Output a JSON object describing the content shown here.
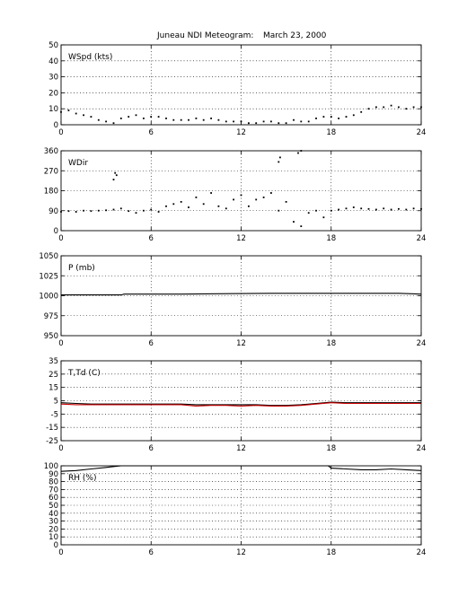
{
  "chart_data": [
    {
      "type": "scatter",
      "panel_label": "WSpd (kts)",
      "ylim": [
        0,
        50
      ],
      "yticks": [
        0,
        10,
        20,
        30,
        40,
        50
      ],
      "xlim": [
        0,
        24
      ],
      "xticks": [
        0,
        6,
        12,
        18,
        24
      ],
      "grid": true,
      "series": [
        {
          "color": "#000000",
          "x": [
            0,
            0.5,
            1,
            1.5,
            2,
            2.5,
            3,
            3.5,
            4,
            4.5,
            5,
            5.5,
            6,
            6.5,
            7,
            7.5,
            8,
            8.5,
            9,
            9.5,
            10,
            10.5,
            11,
            11.5,
            12,
            12.5,
            13,
            13.5,
            14,
            14.5,
            15,
            15.5,
            16,
            16.5,
            17,
            17.5,
            18,
            18.5,
            19,
            19.5,
            20,
            20.5,
            21,
            21.5,
            22,
            22.5,
            23,
            23.5,
            24
          ],
          "y": [
            8,
            9,
            7,
            6,
            5,
            3,
            2,
            1,
            4,
            5,
            6,
            4,
            5,
            5,
            4,
            3,
            3,
            3,
            4,
            3,
            4,
            3,
            2,
            2,
            2,
            1,
            1,
            2,
            2,
            1,
            1,
            3,
            2,
            2,
            4,
            5,
            5,
            4,
            5,
            6,
            8,
            10,
            11,
            11,
            12,
            11,
            10,
            11,
            11
          ]
        }
      ]
    },
    {
      "type": "scatter",
      "panel_label": "WDir",
      "ylim": [
        0,
        360
      ],
      "yticks": [
        0,
        90,
        180,
        270,
        360
      ],
      "xlim": [
        0,
        24
      ],
      "xticks": [
        0,
        6,
        12,
        18,
        24
      ],
      "grid": true,
      "series": [
        {
          "color": "#000000",
          "x": [
            0,
            0.5,
            1,
            1.5,
            2,
            2.5,
            3,
            3.5,
            4,
            4.5,
            5,
            5.5,
            6,
            6.5,
            7,
            7.5,
            8,
            8.5,
            9,
            9.5,
            10,
            10.5,
            11,
            11.5,
            12,
            12.5,
            13,
            13.5,
            14,
            14.5,
            15,
            15.5,
            16,
            16.5,
            17,
            17.5,
            18,
            18.5,
            19,
            19.5,
            20,
            20.5,
            21,
            21.5,
            22,
            22.5,
            23,
            23.5,
            24
          ],
          "y": [
            85,
            88,
            85,
            90,
            88,
            90,
            92,
            95,
            100,
            88,
            80,
            90,
            95,
            85,
            110,
            120,
            130,
            105,
            150,
            120,
            170,
            110,
            100,
            140,
            160,
            110,
            140,
            150,
            170,
            90,
            130,
            40,
            20,
            80,
            90,
            60,
            90,
            95,
            100,
            105,
            100,
            98,
            95,
            100,
            95,
            98,
            95,
            100,
            98
          ]
        },
        {
          "color": "#000000",
          "x": [
            3.5,
            3.6,
            3.7,
            14.5,
            14.6,
            15.8,
            16
          ],
          "y": [
            230,
            260,
            250,
            310,
            330,
            350,
            360
          ]
        }
      ]
    },
    {
      "type": "line",
      "panel_label": "P (mb)",
      "ylim": [
        950,
        1050
      ],
      "yticks": [
        950,
        975,
        1000,
        1025,
        1050
      ],
      "xlim": [
        0,
        24
      ],
      "xticks": [
        0,
        6,
        12,
        18,
        24
      ],
      "grid": true,
      "series": [
        {
          "color": "#000000",
          "x": [
            0,
            4,
            4.2,
            8,
            14,
            22.5,
            24
          ],
          "y": [
            1001,
            1001,
            1002,
            1002,
            1003,
            1003,
            1002
          ]
        }
      ]
    },
    {
      "type": "line",
      "panel_label": "T,Td (C)",
      "ylim": [
        -25,
        35
      ],
      "yticks": [
        -25,
        -15,
        -5,
        5,
        15,
        25,
        35
      ],
      "xlim": [
        0,
        24
      ],
      "xticks": [
        0,
        6,
        12,
        18,
        24
      ],
      "grid": true,
      "series": [
        {
          "color": "#000000",
          "x": [
            0,
            1,
            2,
            3,
            4,
            5,
            6,
            7,
            8,
            9,
            10,
            11,
            12,
            13,
            14,
            15,
            16,
            17,
            18,
            19,
            20,
            21,
            22,
            23,
            24
          ],
          "y": [
            3.5,
            3,
            2.5,
            2.5,
            2.5,
            2.5,
            2.5,
            2.5,
            2.5,
            2,
            2,
            2,
            2,
            2,
            1.5,
            1.5,
            2,
            3,
            4,
            3.5,
            3.5,
            3.5,
            3.5,
            3.5,
            3.5
          ]
        },
        {
          "color": "#cc0000",
          "x": [
            0,
            1,
            2,
            3,
            4,
            5,
            6,
            7,
            8,
            9,
            10,
            11,
            12,
            13,
            14,
            15,
            16,
            17,
            18,
            19,
            20,
            21,
            22,
            23,
            24
          ],
          "y": [
            2.5,
            2,
            2,
            2,
            2,
            2,
            2,
            2,
            2,
            1,
            1.5,
            1.5,
            1,
            1.5,
            1,
            1,
            1.5,
            2.5,
            3.5,
            3,
            3,
            3,
            3,
            3,
            3
          ]
        }
      ]
    },
    {
      "type": "line",
      "panel_label": "RH (%)",
      "ylim": [
        0,
        100
      ],
      "yticks": [
        0,
        10,
        20,
        30,
        40,
        50,
        60,
        70,
        80,
        90,
        100
      ],
      "xlim": [
        0,
        24
      ],
      "xticks": [
        0,
        6,
        12,
        18,
        24
      ],
      "grid": true,
      "series": [
        {
          "color": "#000000",
          "x": [
            0,
            1,
            2,
            3,
            4,
            5,
            6,
            7,
            8,
            9,
            10,
            11,
            12,
            13,
            14,
            15,
            16,
            17,
            17.8,
            18,
            19,
            20,
            21,
            22,
            23,
            24
          ],
          "y": [
            93,
            94,
            96,
            98,
            100,
            100,
            100,
            100,
            100,
            100,
            100,
            100,
            100,
            100,
            100,
            100,
            100,
            100,
            100,
            97,
            96,
            95,
            95,
            96,
            95,
            94
          ]
        }
      ]
    }
  ],
  "figure": {
    "title_station": "Juneau NDI Meteogram:",
    "title_date": "March 23, 2000"
  }
}
